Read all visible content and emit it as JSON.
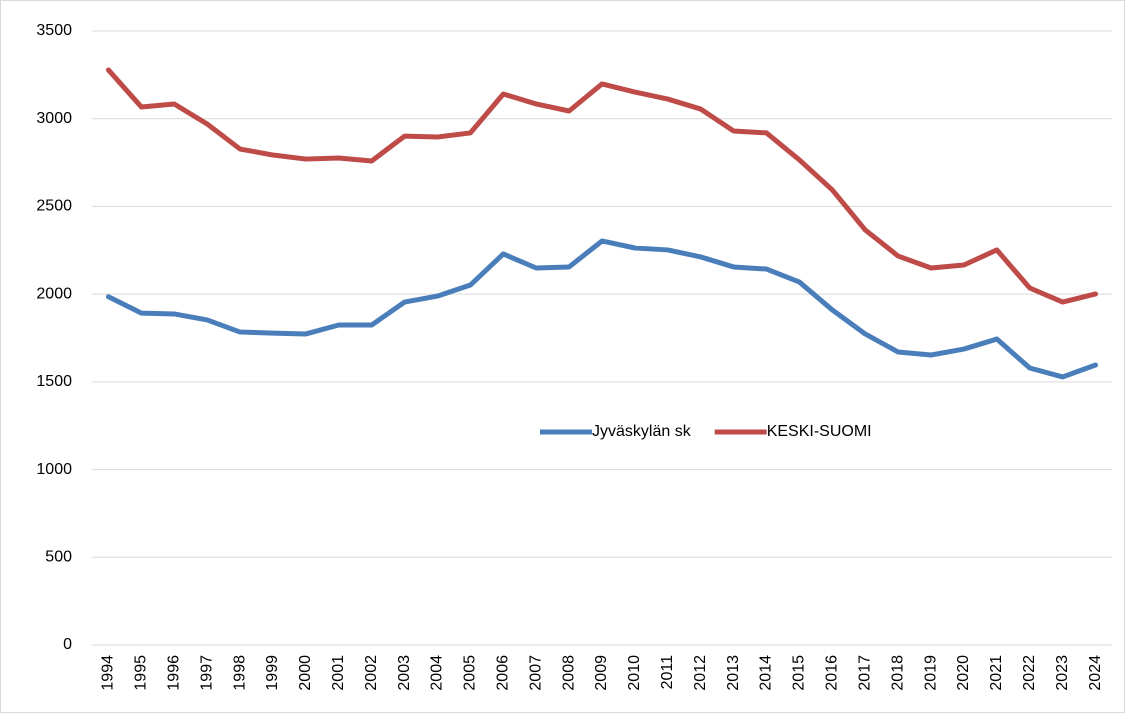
{
  "chart_data": {
    "type": "line",
    "categories": [
      "1994",
      "1995",
      "1996",
      "1997",
      "1998",
      "1999",
      "2000",
      "2001",
      "2002",
      "2003",
      "2004",
      "2005",
      "2006",
      "2007",
      "2008",
      "2009",
      "2010",
      "2011",
      "2012",
      "2013",
      "2014",
      "2015",
      "2016",
      "2017",
      "2018",
      "2019",
      "2020",
      "2021",
      "2022",
      "2023",
      "2024"
    ],
    "series": [
      {
        "name": "Jyväskylän sk",
        "color": "#4a7ebb",
        "values": [
          1985,
          1892,
          1887,
          1853,
          1784,
          1778,
          1773,
          1824,
          1824,
          1955,
          1989,
          2052,
          2229,
          2149,
          2155,
          2303,
          2263,
          2252,
          2212,
          2155,
          2143,
          2069,
          1910,
          1773,
          1670,
          1653,
          1687,
          1744,
          1579,
          1528,
          1596
        ]
      },
      {
        "name": "KESKI-SUOMI",
        "color": "#be4b48",
        "values": [
          3278,
          3067,
          3084,
          2970,
          2827,
          2793,
          2770,
          2776,
          2759,
          2901,
          2896,
          2919,
          3141,
          3084,
          3044,
          3198,
          3152,
          3112,
          3055,
          2930,
          2919,
          2765,
          2594,
          2366,
          2217,
          2149,
          2166,
          2252,
          2035,
          1955,
          2001
        ]
      }
    ],
    "ylim": [
      0,
      3500
    ],
    "yticks": [
      0,
      500,
      1000,
      1500,
      2000,
      2500,
      3000,
      3500
    ],
    "grid": true
  }
}
